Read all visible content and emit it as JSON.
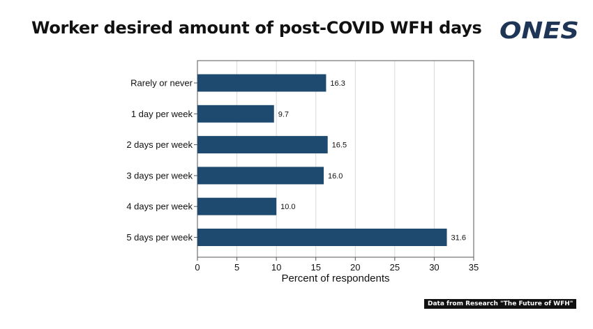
{
  "title": "Worker desired amount of post-COVID WFH days",
  "logo_text": "ONES",
  "source_note": "Data from Research \"The Future of WFH\"",
  "colors": {
    "bar": "#1f4a70",
    "logo": "#1f3556",
    "grid": "#d9d9d9"
  },
  "chart_data": {
    "type": "bar",
    "orientation": "horizontal",
    "categories": [
      "Rarely or never",
      "1 day per week",
      "2 days per week",
      "3 days per week",
      "4 days per week",
      "5 days per week"
    ],
    "values": [
      16.3,
      9.7,
      16.5,
      16.0,
      10.0,
      31.6
    ],
    "data_labels": [
      "16.3",
      "9.7",
      "16.5",
      "16.0",
      "10.0",
      "31.6"
    ],
    "xlabel": "Percent of respondents",
    "xlim": [
      0,
      35
    ],
    "xticks": [
      0,
      5,
      10,
      15,
      20,
      25,
      30,
      35
    ],
    "grid": true
  }
}
